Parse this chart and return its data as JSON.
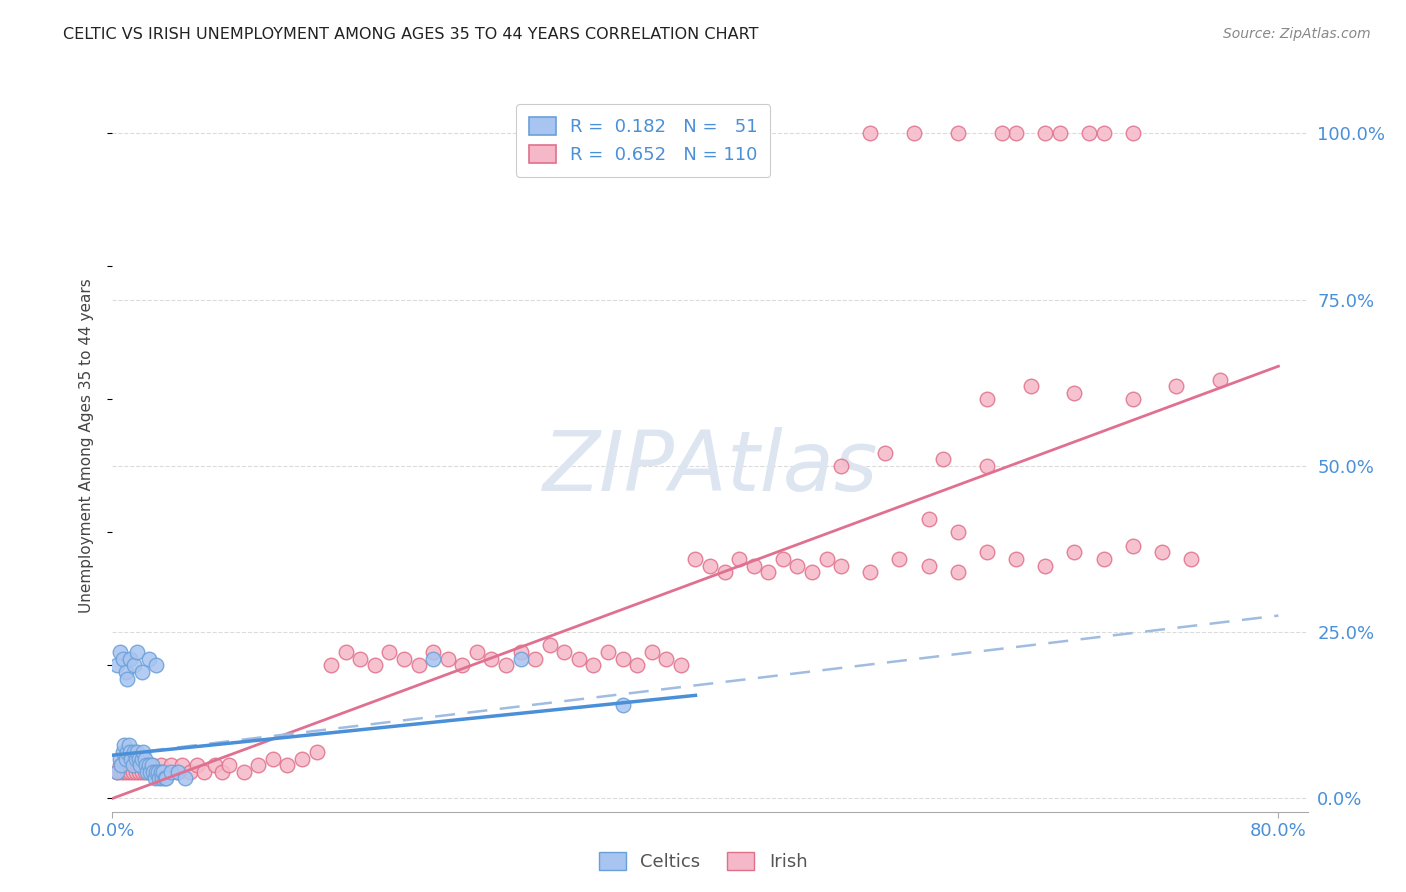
{
  "title": "CELTIC VS IRISH UNEMPLOYMENT AMONG AGES 35 TO 44 YEARS CORRELATION CHART",
  "source": "Source: ZipAtlas.com",
  "ylabel": "Unemployment Among Ages 35 to 44 years",
  "xlim": [
    0.0,
    0.82
  ],
  "ylim": [
    -0.02,
    1.08
  ],
  "ytick_labels_right": [
    "0.0%",
    "25.0%",
    "50.0%",
    "75.0%",
    "100.0%"
  ],
  "yticks_right": [
    0.0,
    0.25,
    0.5,
    0.75,
    1.0
  ],
  "xtick_positions": [
    0.0,
    0.8
  ],
  "xtick_labels": [
    "0.0%",
    "80.0%"
  ],
  "celtics_R": 0.182,
  "celtics_N": 51,
  "irish_R": 0.652,
  "irish_N": 110,
  "celtics_color": "#a8c4f0",
  "celtics_edge_color": "#6aa0d8",
  "irish_color": "#f5b8c8",
  "irish_edge_color": "#e0708a",
  "celtics_line_color": "#4a90d9",
  "irish_line_color": "#e07090",
  "dashed_line_color": "#a0bce0",
  "background_color": "#ffffff",
  "legend_celtics_color": "#a8c4f0",
  "legend_irish_color": "#f5b8c8",
  "grid_color": "#cccccc",
  "bottom_legend_labels": [
    "Celtics",
    "Irish"
  ],
  "watermark_color": "#dde5f0",
  "title_color": "#222222",
  "tick_color": "#4a90d9",
  "celtics_scatter_x": [
    0.003,
    0.005,
    0.006,
    0.007,
    0.008,
    0.009,
    0.01,
    0.011,
    0.012,
    0.013,
    0.014,
    0.015,
    0.016,
    0.017,
    0.018,
    0.019,
    0.02,
    0.021,
    0.022,
    0.023,
    0.024,
    0.025,
    0.026,
    0.027,
    0.028,
    0.029,
    0.03,
    0.031,
    0.032,
    0.033,
    0.034,
    0.035,
    0.036,
    0.037,
    0.04,
    0.045,
    0.05,
    0.003,
    0.005,
    0.007,
    0.009,
    0.01,
    0.012,
    0.015,
    0.017,
    0.02,
    0.025,
    0.03,
    0.22,
    0.28,
    0.35
  ],
  "celtics_scatter_y": [
    0.04,
    0.06,
    0.05,
    0.07,
    0.08,
    0.06,
    0.07,
    0.08,
    0.07,
    0.06,
    0.05,
    0.07,
    0.06,
    0.07,
    0.06,
    0.05,
    0.06,
    0.07,
    0.06,
    0.05,
    0.04,
    0.05,
    0.04,
    0.05,
    0.04,
    0.03,
    0.04,
    0.04,
    0.03,
    0.04,
    0.03,
    0.04,
    0.03,
    0.03,
    0.04,
    0.04,
    0.03,
    0.2,
    0.22,
    0.21,
    0.19,
    0.18,
    0.21,
    0.2,
    0.22,
    0.19,
    0.21,
    0.2,
    0.21,
    0.21,
    0.14
  ],
  "irish_scatter_x": [
    0.003,
    0.005,
    0.006,
    0.007,
    0.008,
    0.009,
    0.01,
    0.011,
    0.012,
    0.013,
    0.014,
    0.015,
    0.016,
    0.017,
    0.018,
    0.019,
    0.02,
    0.021,
    0.022,
    0.023,
    0.025,
    0.027,
    0.03,
    0.033,
    0.036,
    0.04,
    0.044,
    0.048,
    0.053,
    0.058,
    0.063,
    0.07,
    0.075,
    0.08,
    0.09,
    0.1,
    0.11,
    0.12,
    0.13,
    0.14,
    0.15,
    0.16,
    0.17,
    0.18,
    0.19,
    0.2,
    0.21,
    0.22,
    0.23,
    0.24,
    0.25,
    0.26,
    0.27,
    0.28,
    0.29,
    0.3,
    0.31,
    0.32,
    0.33,
    0.34,
    0.35,
    0.36,
    0.37,
    0.38,
    0.39,
    0.4,
    0.41,
    0.42,
    0.43,
    0.44,
    0.45,
    0.46,
    0.47,
    0.48,
    0.49,
    0.5,
    0.52,
    0.54,
    0.56,
    0.58,
    0.6,
    0.62,
    0.64,
    0.66,
    0.68,
    0.7,
    0.72,
    0.74,
    0.56,
    0.58,
    0.6,
    0.63,
    0.66,
    0.7,
    0.73,
    0.76,
    0.5,
    0.53,
    0.57,
    0.6,
    0.62,
    0.64,
    0.67,
    0.7,
    0.52,
    0.55,
    0.58,
    0.61,
    0.65,
    0.68
  ],
  "irish_scatter_y": [
    0.04,
    0.05,
    0.04,
    0.05,
    0.04,
    0.05,
    0.04,
    0.05,
    0.04,
    0.05,
    0.04,
    0.05,
    0.04,
    0.05,
    0.04,
    0.05,
    0.04,
    0.05,
    0.04,
    0.05,
    0.04,
    0.05,
    0.04,
    0.05,
    0.04,
    0.05,
    0.04,
    0.05,
    0.04,
    0.05,
    0.04,
    0.05,
    0.04,
    0.05,
    0.04,
    0.05,
    0.06,
    0.05,
    0.06,
    0.07,
    0.2,
    0.22,
    0.21,
    0.2,
    0.22,
    0.21,
    0.2,
    0.22,
    0.21,
    0.2,
    0.22,
    0.21,
    0.2,
    0.22,
    0.21,
    0.23,
    0.22,
    0.21,
    0.2,
    0.22,
    0.21,
    0.2,
    0.22,
    0.21,
    0.2,
    0.36,
    0.35,
    0.34,
    0.36,
    0.35,
    0.34,
    0.36,
    0.35,
    0.34,
    0.36,
    0.35,
    0.34,
    0.36,
    0.35,
    0.34,
    0.37,
    0.36,
    0.35,
    0.37,
    0.36,
    0.38,
    0.37,
    0.36,
    0.42,
    0.4,
    0.6,
    0.62,
    0.61,
    0.6,
    0.62,
    0.63,
    0.5,
    0.52,
    0.51,
    0.5,
    1.0,
    1.0,
    1.0,
    1.0,
    1.0,
    1.0,
    1.0,
    1.0,
    1.0,
    1.0
  ],
  "celtics_solid_line": {
    "x": [
      0.0,
      0.4
    ],
    "y": [
      0.065,
      0.155
    ]
  },
  "celtics_dashed_line": {
    "x": [
      0.0,
      0.8
    ],
    "y": [
      0.065,
      0.275
    ]
  },
  "irish_solid_line": {
    "x": [
      0.0,
      0.8
    ],
    "y": [
      0.0,
      0.65
    ]
  },
  "watermark_fontsize": 60
}
